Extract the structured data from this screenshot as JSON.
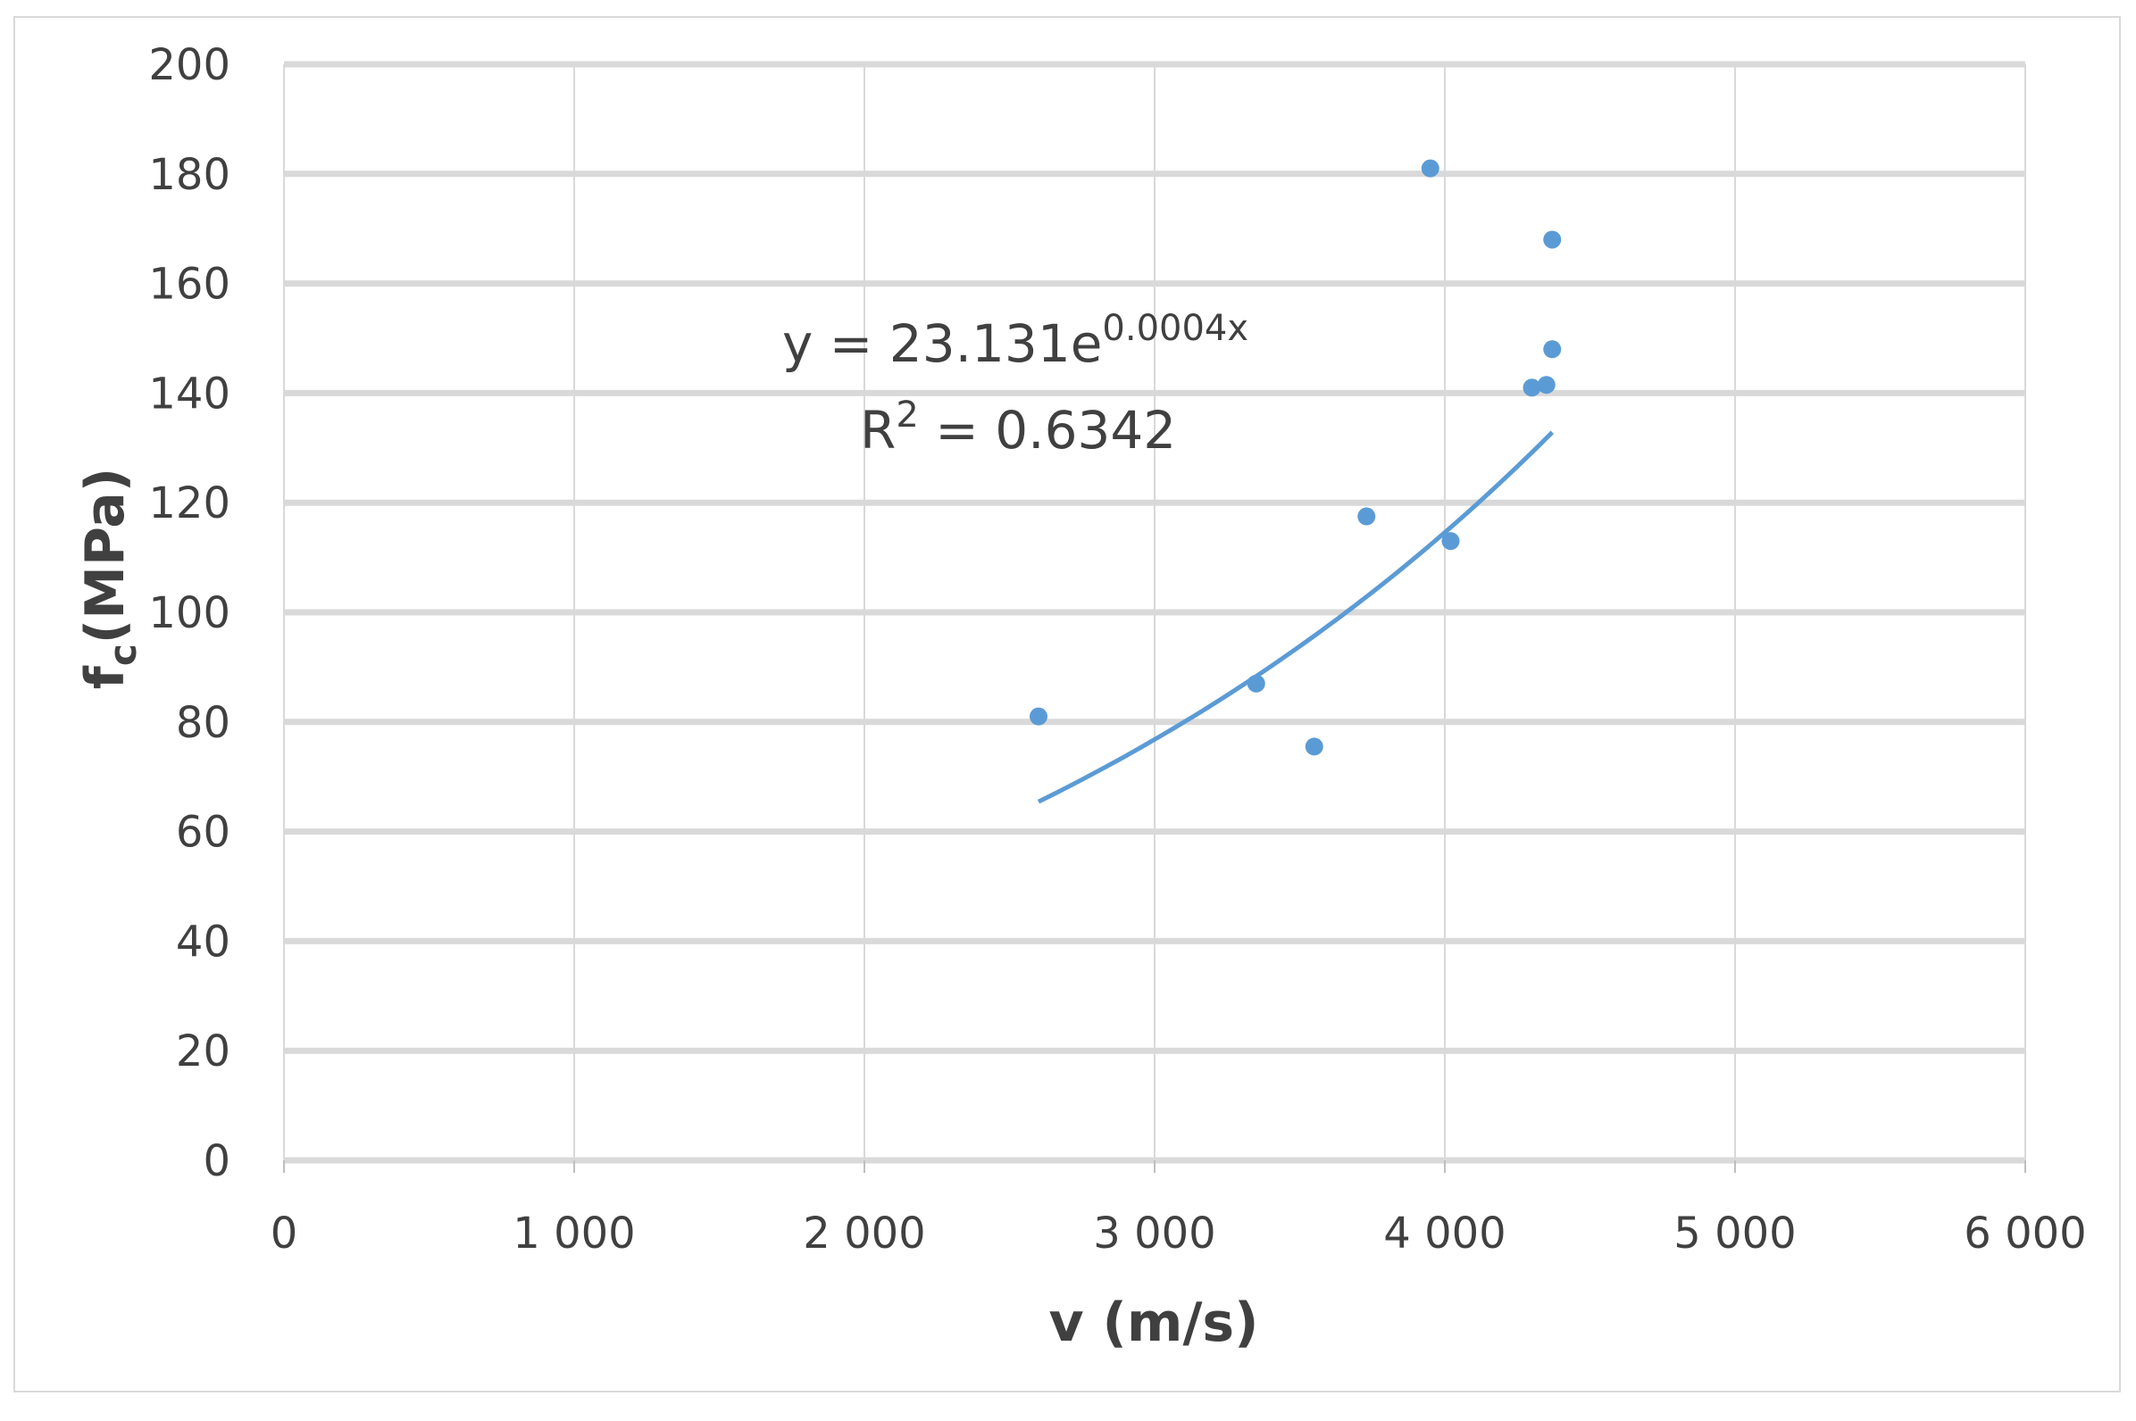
{
  "chart_data": {
    "type": "scatter",
    "xlabel": "v (m/s)",
    "ylabel": {
      "main": "f",
      "sub": "c",
      "unit": "(MPa)"
    },
    "xlim": [
      0,
      6000
    ],
    "ylim": [
      0,
      200
    ],
    "x_ticks": [
      0,
      1000,
      2000,
      3000,
      4000,
      5000,
      6000
    ],
    "x_tick_labels": [
      "0",
      "1 000",
      "2 000",
      "3 000",
      "4 000",
      "5 000",
      "6 000"
    ],
    "y_ticks": [
      0,
      20,
      40,
      60,
      80,
      100,
      120,
      140,
      160,
      180,
      200
    ],
    "y_tick_labels": [
      "0",
      "20",
      "40",
      "60",
      "80",
      "100",
      "120",
      "140",
      "160",
      "180",
      "200"
    ],
    "grid": true,
    "marker_color": "#5b9bd5",
    "trendline_color": "#5b9bd5",
    "points": [
      {
        "x": 2600,
        "y": 81
      },
      {
        "x": 3350,
        "y": 87
      },
      {
        "x": 3550,
        "y": 75.5
      },
      {
        "x": 3730,
        "y": 117.5
      },
      {
        "x": 3950,
        "y": 181
      },
      {
        "x": 4020,
        "y": 113
      },
      {
        "x": 4300,
        "y": 141
      },
      {
        "x": 4350,
        "y": 141.5
      },
      {
        "x": 4370,
        "y": 148
      },
      {
        "x": 4370,
        "y": 168
      }
    ],
    "trendline": {
      "type": "exponential",
      "a": 23.131,
      "b": 0.0004,
      "x_range": [
        2600,
        4370
      ],
      "equation_label": {
        "prefix": "y = 23.131e",
        "exponent": "0.0004x"
      },
      "r2_label": {
        "base": "R",
        "superscript": "2",
        "value": " = 0.6342"
      }
    }
  }
}
